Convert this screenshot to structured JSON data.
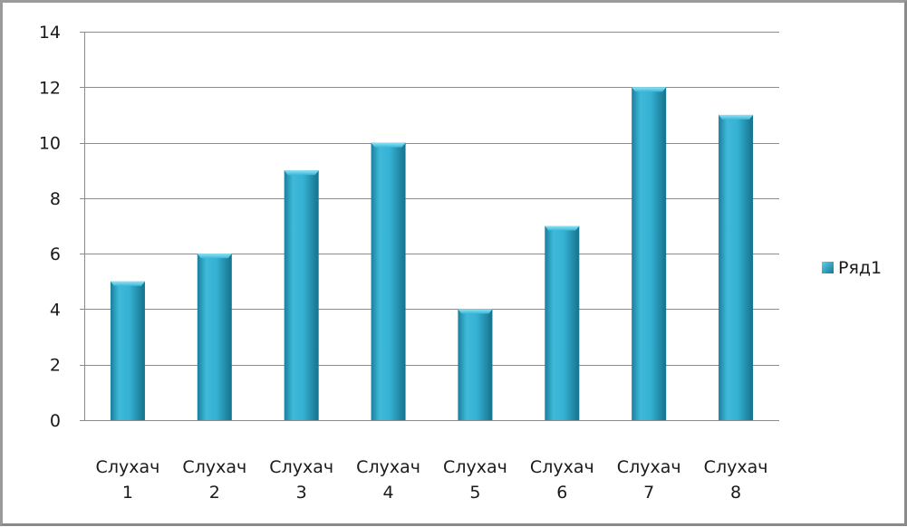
{
  "chart_data": {
    "type": "bar",
    "categories": [
      [
        "Слухач",
        "1"
      ],
      [
        "Слухач",
        "2"
      ],
      [
        "Слухач",
        "3"
      ],
      [
        "Слухач",
        "4"
      ],
      [
        "Слухач",
        "5"
      ],
      [
        "Слухач",
        "6"
      ],
      [
        "Слухач",
        "7"
      ],
      [
        "Слухач",
        "8"
      ]
    ],
    "series": [
      {
        "name": "Ряд1",
        "values": [
          5,
          6,
          9,
          10,
          4,
          7,
          12,
          11
        ]
      }
    ],
    "ylim": [
      0,
      14
    ],
    "yticks": [
      0,
      2,
      4,
      6,
      8,
      10,
      12,
      14
    ],
    "grid": true,
    "legend_position": "right",
    "colors": {
      "bar_light": "#4ec6e4",
      "bar_mid": "#2aa5c7",
      "bar_dark": "#147a96",
      "bar_top": "#3bbfe0",
      "grid": "#8c8c8c",
      "axis": "#8c8c8c"
    }
  }
}
